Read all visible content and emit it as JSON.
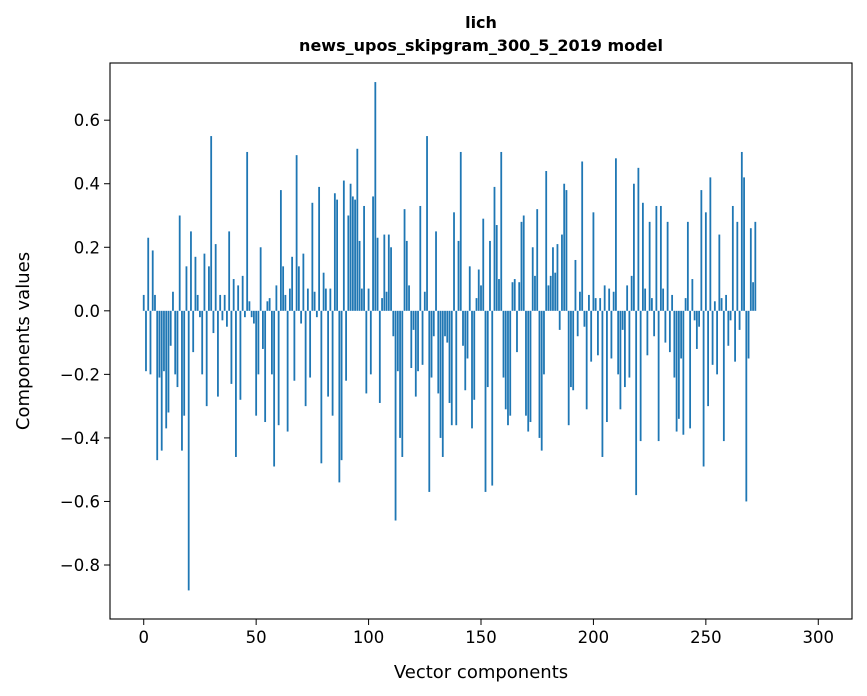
{
  "chart_data": {
    "type": "bar",
    "title": "lich",
    "subtitle": "news_upos_skipgram_300_5_2019 model",
    "xlabel": "Vector components",
    "ylabel": "Components values",
    "xlim": [
      -15,
      315
    ],
    "ylim": [
      -0.97,
      0.78
    ],
    "xticks": [
      0,
      50,
      100,
      150,
      200,
      250,
      300
    ],
    "xtick_labels": [
      "0",
      "50",
      "100",
      "150",
      "200",
      "250",
      "300"
    ],
    "yticks": [
      -0.8,
      -0.6,
      -0.4,
      -0.2,
      0.0,
      0.2,
      0.4,
      0.6
    ],
    "ytick_labels": [
      "−0.8",
      "−0.6",
      "−0.4",
      "−0.2",
      "0.0",
      "0.2",
      "0.4",
      "0.6"
    ],
    "grid": false,
    "bar_color": "#1f77b4",
    "series": [
      {
        "x_start": 0,
        "values": [
          0.05,
          -0.19,
          0.23,
          -0.2,
          0.19,
          0.05,
          -0.47,
          -0.21,
          -0.44,
          -0.19,
          -0.37,
          -0.32,
          -0.11,
          0.06,
          -0.2,
          -0.24,
          0.3,
          -0.44,
          -0.33,
          0.14,
          -0.88,
          0.25,
          -0.13,
          0.17,
          0.05,
          -0.02,
          -0.2,
          0.18,
          -0.3,
          0.14,
          0.55,
          -0.07,
          0.21,
          -0.27,
          0.05,
          -0.03,
          0.05,
          -0.05,
          0.25,
          -0.23,
          0.1,
          -0.46,
          0.08,
          -0.28,
          0.11,
          -0.02,
          0.5,
          0.03,
          -0.02,
          -0.04,
          -0.33,
          -0.2,
          0.2,
          -0.12,
          -0.35,
          0.03,
          0.04,
          -0.2,
          -0.49,
          0.08,
          -0.36,
          0.38,
          0.14,
          0.05,
          -0.38,
          0.07,
          0.17,
          -0.22,
          0.49,
          0.14,
          -0.04,
          0.18,
          -0.3,
          0.07,
          -0.21,
          0.34,
          0.06,
          -0.02,
          0.39,
          -0.48,
          0.12,
          0.07,
          -0.27,
          0.07,
          -0.33,
          0.37,
          0.35,
          -0.54,
          -0.47,
          0.41,
          -0.22,
          0.3,
          0.4,
          0.36,
          0.35,
          0.51,
          0.22,
          0.07,
          0.33,
          -0.26,
          0.07,
          -0.2,
          0.36,
          0.72,
          0.23,
          -0.29,
          0.04,
          0.24,
          0.06,
          0.24,
          0.2,
          -0.08,
          -0.66,
          -0.19,
          -0.4,
          -0.46,
          0.32,
          0.22,
          0.08,
          -0.18,
          -0.06,
          -0.27,
          -0.19,
          0.33,
          -0.17,
          0.06,
          0.55,
          -0.57,
          -0.21,
          -0.08,
          0.25,
          -0.26,
          -0.4,
          -0.46,
          -0.08,
          -0.1,
          -0.29,
          -0.36,
          0.31,
          -0.36,
          0.22,
          0.5,
          -0.11,
          -0.25,
          -0.15,
          0.14,
          -0.37,
          -0.28,
          0.04,
          0.13,
          0.08,
          0.29,
          -0.57,
          -0.24,
          0.22,
          -0.55,
          0.39,
          0.27,
          0.1,
          0.5,
          -0.21,
          -0.31,
          -0.36,
          -0.33,
          0.09,
          0.1,
          -0.13,
          0.09,
          0.28,
          0.3,
          -0.33,
          -0.38,
          -0.35,
          0.2,
          0.11,
          0.32,
          -0.4,
          -0.44,
          -0.2,
          0.44,
          0.08,
          0.11,
          0.2,
          0.12,
          0.21,
          -0.06,
          0.24,
          0.4,
          0.38,
          -0.36,
          -0.24,
          -0.25,
          0.16,
          -0.08,
          0.06,
          0.47,
          -0.05,
          -0.31,
          0.05,
          -0.16,
          0.31,
          0.04,
          -0.14,
          0.04,
          -0.46,
          0.08,
          -0.35,
          0.07,
          -0.15,
          0.06,
          0.48,
          -0.2,
          -0.31,
          -0.06,
          -0.24,
          0.08,
          -0.21,
          0.11,
          0.4,
          -0.58,
          0.45,
          -0.41,
          0.34,
          0.07,
          -0.14,
          0.28,
          0.04,
          -0.08,
          0.33,
          -0.41,
          0.33,
          0.07,
          -0.1,
          0.28,
          -0.13,
          0.05,
          -0.21,
          -0.38,
          -0.34,
          -0.15,
          -0.39,
          0.04,
          0.28,
          -0.37,
          0.1,
          -0.03,
          -0.12,
          -0.05,
          0.38,
          -0.49,
          0.31,
          -0.3,
          0.42,
          -0.17,
          0.03,
          -0.2,
          0.24,
          0.04,
          -0.41,
          0.05,
          -0.11,
          -0.03,
          0.33,
          -0.16,
          0.28,
          -0.06,
          0.5,
          0.42,
          -0.6,
          -0.15,
          0.26,
          0.09,
          0.28
        ]
      }
    ]
  }
}
